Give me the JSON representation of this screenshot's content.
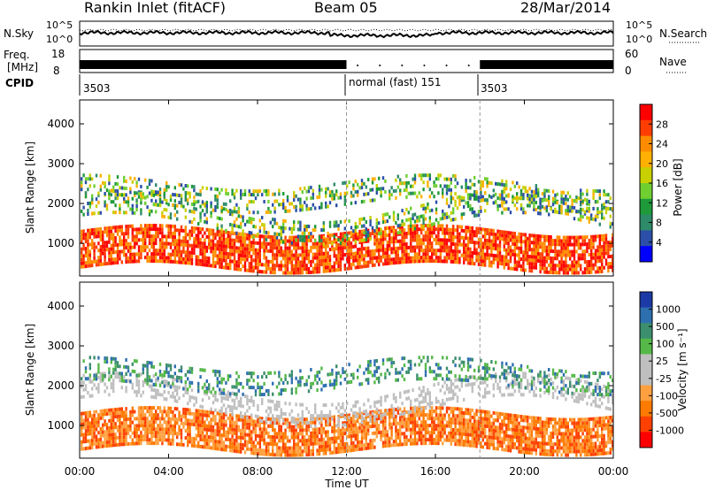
{
  "header": {
    "site": "Rankin Inlet (fitACF)",
    "beam": "Beam 05",
    "date": "28/Mar/2014"
  },
  "noise_panel": {
    "left_label": "N.Sky",
    "right_label": "N.Search",
    "left_ticks": [
      "10^5",
      "10^0"
    ],
    "right_ticks": [
      "10^5",
      "10^0"
    ]
  },
  "freq_panel": {
    "left_label_1": "Freq.",
    "left_label_2": "[MHz]",
    "left_ticks": [
      "18",
      "8"
    ],
    "right_label": "Nave",
    "right_ticks": [
      "60",
      "0"
    ]
  },
  "cpid_panel": {
    "label": "CPID",
    "segments": [
      {
        "start_hour": 0,
        "end_hour": 12,
        "text": "3503"
      },
      {
        "start_hour": 12,
        "end_hour": 18,
        "text": "normal (fast) 151"
      },
      {
        "start_hour": 18,
        "end_hour": 24,
        "text": "3503"
      }
    ]
  },
  "x_axis": {
    "label": "Time UT",
    "ticks": [
      "00:00",
      "04:00",
      "08:00",
      "12:00",
      "16:00",
      "20:00",
      "00:00"
    ],
    "tick_hours": [
      0,
      4,
      8,
      12,
      16,
      20,
      24
    ],
    "range_hours": [
      0,
      24
    ]
  },
  "chart_data": [
    {
      "type": "heatmap",
      "name": "power",
      "ylabel": "Slant Range [km]",
      "ylim": [
        180,
        4600
      ],
      "y_ticks": [
        1000,
        2000,
        3000,
        4000
      ],
      "colorbar": {
        "label": "Power [dB]",
        "ticks": [
          "28",
          "24",
          "20",
          "16",
          "12",
          "8",
          "4"
        ],
        "colors": [
          "#ff0000",
          "#ff3d00",
          "#ff8c00",
          "#ffb000",
          "#c8d000",
          "#6fcf30",
          "#1e9a3a",
          "#2e8b6a",
          "#2b4fa8",
          "#0000ff"
        ]
      }
    },
    {
      "type": "heatmap",
      "name": "velocity",
      "ylabel": "Slant Range [km]",
      "ylim": [
        180,
        4600
      ],
      "y_ticks": [
        1000,
        2000,
        3000,
        4000
      ],
      "colorbar": {
        "label": "Velocity [m s⁻¹]",
        "ticks": [
          "1000",
          "500",
          "100",
          "25",
          "-25",
          "-100",
          "-500",
          "-1000"
        ],
        "colors": [
          "#1c3aa6",
          "#2e6fb0",
          "#3c8f6e",
          "#55b848",
          "#bfbfbf",
          "#bfbfbf",
          "#ffa040",
          "#ff7a00",
          "#ff4000",
          "#ff0000"
        ]
      }
    }
  ]
}
